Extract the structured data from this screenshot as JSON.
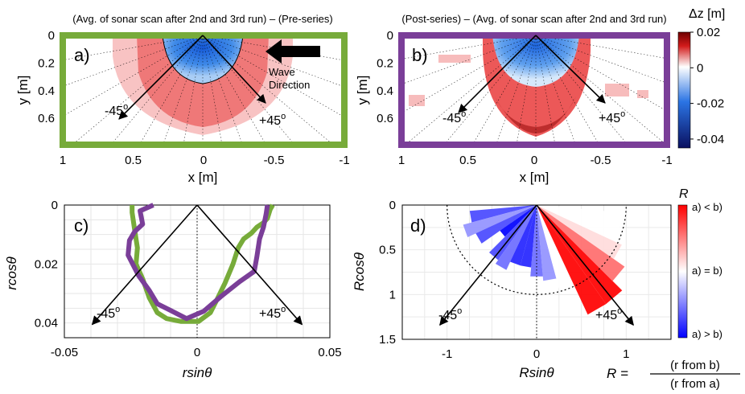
{
  "colors": {
    "preseries_frame": "#77ab3a",
    "postseries_frame": "#7a3e98",
    "curve_a": "#77ab3a",
    "curve_b": "#7a3e98",
    "deposition": "#e52222",
    "scour": "#1f6fe0"
  },
  "chart_data": [
    {
      "id": "a",
      "type": "heatmap",
      "panel_label": "a)",
      "title": "(Avg. of sonar scan after 2nd and 3rd run) – (Pre-series)",
      "xlabel": "x [m]",
      "ylabel": "y [m]",
      "xlim": [
        1,
        -1
      ],
      "ylim": [
        0,
        0.8
      ],
      "xticks": [
        "1",
        "0.5",
        "0",
        "-0.5",
        "-1"
      ],
      "yticks": [
        "0",
        "0.2",
        "0.4",
        "0.6"
      ],
      "direction_labels": [
        "-45",
        "+45"
      ],
      "annotation": [
        "Wave",
        "Direction"
      ],
      "frame_color": "#77ab3a"
    },
    {
      "id": "b",
      "type": "heatmap",
      "panel_label": "b)",
      "title": "(Post-series) – (Avg. of sonar scan after 2nd and 3rd run)",
      "xlabel": "x [m]",
      "ylabel": "y [m]",
      "xlim": [
        1,
        -1
      ],
      "ylim": [
        0,
        0.8
      ],
      "xticks": [
        "1",
        "0.5",
        "0",
        "-0.5",
        "-1"
      ],
      "yticks": [
        "0",
        "0.2",
        "0.4",
        "0.6"
      ],
      "direction_labels": [
        "-45",
        "+45"
      ],
      "frame_color": "#7a3e98"
    },
    {
      "id": "colorbar_dz",
      "type": "colorbar",
      "label": "Δz [m]",
      "range": [
        -0.045,
        0.02
      ],
      "ticks": [
        "0.02",
        "0",
        "-0.02",
        "-0.04"
      ],
      "tick_values": [
        0.02,
        0,
        -0.02,
        -0.04
      ]
    },
    {
      "id": "c",
      "type": "line",
      "panel_label": "c)",
      "xlabel": "rsinθ",
      "ylabel": "rcosθ",
      "xlim": [
        -0.05,
        0.05
      ],
      "ylim": [
        0,
        0.045
      ],
      "xticks": [
        "-0.05",
        "0",
        "0.05"
      ],
      "xtick_values": [
        -0.05,
        0,
        0.05
      ],
      "yticks": [
        "0",
        "0.02",
        "0.04"
      ],
      "ytick_values": [
        0,
        0.02,
        0.04
      ],
      "direction_labels": [
        "-45",
        "+45"
      ],
      "series": [
        {
          "color": "#77ab3a",
          "x": [
            -0.0245,
            -0.0245,
            -0.0235,
            -0.0225,
            -0.023,
            -0.0205,
            -0.018,
            -0.015,
            -0.0115,
            -0.006,
            0.0005,
            0.005,
            0.0075,
            0.0105,
            0.0135,
            0.0155,
            0.0175,
            0.0205,
            0.0225,
            0.025,
            0.0265,
            0.0275,
            0.0285
          ],
          "y": [
            0.0,
            0.0025,
            0.0085,
            0.0145,
            0.02,
            0.025,
            0.0315,
            0.0365,
            0.0385,
            0.0395,
            0.0395,
            0.0365,
            0.032,
            0.0265,
            0.02,
            0.0145,
            0.0115,
            0.0095,
            0.0075,
            0.006,
            0.0045,
            0.0015,
            0.0
          ]
        },
        {
          "color": "#7a3e98",
          "x": [
            -0.0165,
            -0.0215,
            -0.0205,
            -0.0235,
            -0.0255,
            -0.026,
            -0.022,
            -0.018,
            -0.015,
            -0.0105,
            -0.004,
            0.0025,
            0.009,
            0.016,
            0.0215,
            0.0225,
            0.0235,
            0.025,
            0.026,
            0.0265
          ],
          "y": [
            0.0,
            0.002,
            0.0065,
            0.009,
            0.012,
            0.017,
            0.024,
            0.029,
            0.0335,
            0.0355,
            0.0385,
            0.036,
            0.031,
            0.026,
            0.0225,
            0.0175,
            0.0115,
            0.0075,
            0.003,
            0.0
          ]
        }
      ]
    },
    {
      "id": "d",
      "type": "bar",
      "subtype": "polar",
      "panel_label": "d)",
      "xlabel": "Rsinθ",
      "ylabel": "Rcosθ",
      "xlim": [
        -1.5,
        1.5
      ],
      "ylim": [
        0,
        1.5
      ],
      "xticks": [
        "-1",
        "0",
        "1"
      ],
      "xtick_values": [
        -1,
        0,
        1
      ],
      "yticks": [
        "0",
        "0.5",
        "1",
        "1.5"
      ],
      "ytick_values": [
        0,
        0.5,
        1,
        1.5
      ],
      "reference_radius": 1,
      "direction_labels": [
        "-45",
        "+45"
      ],
      "angle_deg": [
        -80,
        -70,
        -60,
        -50,
        -40,
        -30,
        -20,
        -10,
        0,
        10,
        20,
        30,
        40,
        50,
        60,
        70,
        80
      ],
      "R": [
        0.75,
        0.85,
        0.75,
        0.5,
        0.75,
        0.8,
        0.7,
        0.7,
        0.8,
        0.85,
        1.0,
        1.35,
        1.35,
        1.2,
        1.05,
        1.0,
        1.0
      ],
      "colorbar": {
        "label": "R",
        "ticks": [
          "a) < b)",
          "a) = b)",
          "a) > b)"
        ],
        "formula": {
          "lhs": "R =",
          "numerator": "(r from b)",
          "denominator": "(r from a)"
        }
      }
    }
  ]
}
